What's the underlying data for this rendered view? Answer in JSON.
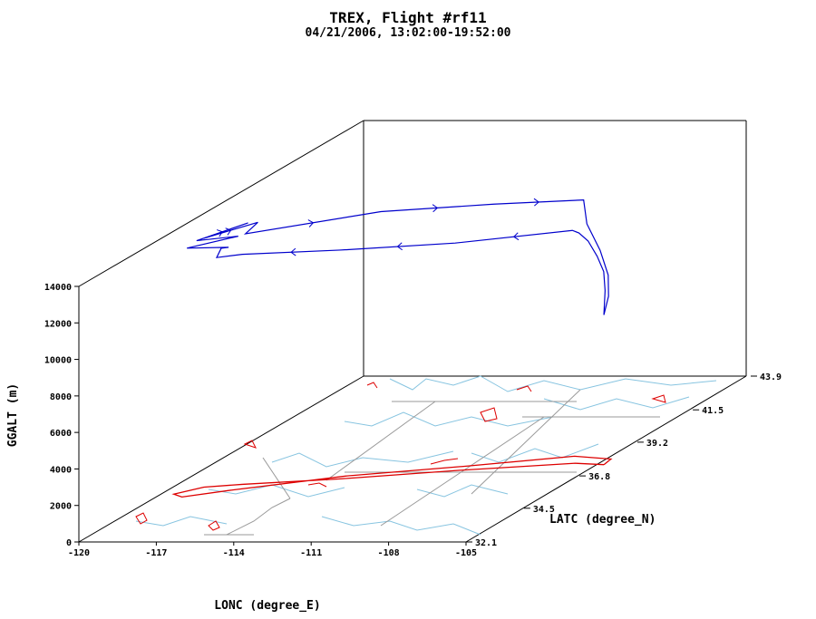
{
  "chart_data": {
    "type": "line3d",
    "title": "TREX, Flight #rf11",
    "subtitle": "04/21/2006, 13:02:00-19:52:00",
    "xlabel": "LONC (degree_E)",
    "ylabel": "LATC (degree_N)",
    "zlabel": "GGALT (m)",
    "xlim": [
      -120,
      -105
    ],
    "ylim": [
      32.1,
      43.9
    ],
    "zlim": [
      0,
      14000
    ],
    "x_ticks": [
      "-120",
      "-117",
      "-114",
      "-111",
      "-108",
      "-105"
    ],
    "y_ticks": [
      "32.1",
      "34.5",
      "36.8",
      "39.2",
      "41.5",
      "43.9"
    ],
    "z_ticks": [
      "0",
      "2000",
      "4000",
      "6000",
      "8000",
      "10000",
      "12000",
      "14000"
    ],
    "colors": {
      "flight_track": "#0000cc",
      "ground_track": "#dd0000",
      "map_lines": "#87c4e0",
      "borders": "#999999",
      "frame": "#000000"
    },
    "flight_path": [
      {
        "lon": -104.8,
        "lat": 37.6,
        "alt": 8200
      },
      {
        "lon": -104.8,
        "lat": 37.65,
        "alt": 9500
      },
      {
        "lon": -104.9,
        "lat": 37.7,
        "alt": 10500
      },
      {
        "lon": -105.2,
        "lat": 37.75,
        "alt": 11300
      },
      {
        "lon": -105.6,
        "lat": 37.8,
        "alt": 12100
      },
      {
        "lon": -106.0,
        "lat": 37.85,
        "alt": 12500
      },
      {
        "lon": -106.3,
        "lat": 37.9,
        "alt": 12600
      },
      {
        "lon": -110.0,
        "lat": 37.0,
        "alt": 12600
      },
      {
        "lon": -114.0,
        "lat": 36.5,
        "alt": 12600
      },
      {
        "lon": -117.5,
        "lat": 36.2,
        "alt": 12600
      },
      {
        "lon": -118.4,
        "lat": 36.1,
        "alt": 12500
      },
      {
        "lon": -118.6,
        "lat": 36.5,
        "alt": 12700
      },
      {
        "lon": -118.5,
        "lat": 36.7,
        "alt": 12600
      },
      {
        "lon": -120.3,
        "lat": 36.9,
        "alt": 12400
      },
      {
        "lon": -118.5,
        "lat": 37.1,
        "alt": 12900
      },
      {
        "lon": -120.3,
        "lat": 37.3,
        "alt": 12500
      },
      {
        "lon": -118.4,
        "lat": 37.4,
        "alt": 13400
      },
      {
        "lon": -120.3,
        "lat": 37.6,
        "alt": 12400
      },
      {
        "lon": -118.3,
        "lat": 37.7,
        "alt": 13200
      },
      {
        "lon": -118.5,
        "lat": 37.4,
        "alt": 12800
      },
      {
        "lon": -114.0,
        "lat": 38.2,
        "alt": 13400
      },
      {
        "lon": -110.0,
        "lat": 38.6,
        "alt": 13500
      },
      {
        "lon": -106.8,
        "lat": 38.9,
        "alt": 13500
      },
      {
        "lon": -106.3,
        "lat": 38.5,
        "alt": 12500
      },
      {
        "lon": -105.6,
        "lat": 38.3,
        "alt": 11200
      },
      {
        "lon": -105.1,
        "lat": 38.1,
        "alt": 10000
      },
      {
        "lon": -104.9,
        "lat": 37.9,
        "alt": 9000
      },
      {
        "lon": -104.8,
        "lat": 37.6,
        "alt": 8200
      }
    ],
    "ground_track": [
      {
        "lon": -104.8,
        "lat": 37.6
      },
      {
        "lon": -106.0,
        "lat": 37.7
      },
      {
        "lon": -110.0,
        "lat": 37.2
      },
      {
        "lon": -114.0,
        "lat": 36.6
      },
      {
        "lon": -117.5,
        "lat": 36.2
      },
      {
        "lon": -118.8,
        "lat": 36.0
      },
      {
        "lon": -119.5,
        "lat": 35.5
      },
      {
        "lon": -119.0,
        "lat": 35.3
      },
      {
        "lon": -117.5,
        "lat": 35.8
      },
      {
        "lon": -114.0,
        "lat": 36.8
      },
      {
        "lon": -110.0,
        "lat": 37.5
      },
      {
        "lon": -106.5,
        "lat": 38.2
      },
      {
        "lon": -104.9,
        "lat": 38.0
      },
      {
        "lon": -104.8,
        "lat": 37.6
      }
    ]
  }
}
